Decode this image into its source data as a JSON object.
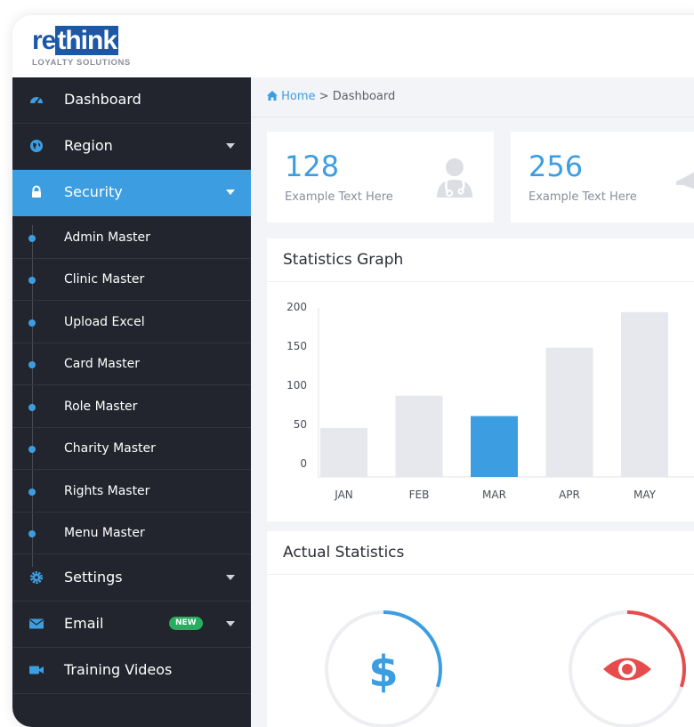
{
  "brand": {
    "logo_re": "re",
    "logo_think": "think",
    "tagline": "LOYALTY SOLUTIONS"
  },
  "sidebar": {
    "items": [
      {
        "label": "Dashboard",
        "icon": "dashboard-icon"
      },
      {
        "label": "Region",
        "icon": "globe-icon"
      },
      {
        "label": "Security",
        "icon": "lock-icon",
        "active": true
      },
      {
        "label": "Settings",
        "icon": "gear-icon"
      },
      {
        "label": "Email",
        "icon": "envelope-icon",
        "badge": "NEW"
      },
      {
        "label": "Training Videos",
        "icon": "video-camera-icon"
      }
    ],
    "security_sub": [
      "Admin Master",
      "Clinic Master",
      "Upload Excel",
      "Card Master",
      "Role Master",
      "Charity Master",
      "Rights Master",
      "Menu Master"
    ]
  },
  "breadcrumb": {
    "home": "Home",
    "separator": ">",
    "current": "Dashboard"
  },
  "stats": [
    {
      "value": "128",
      "text": "Example Text Here",
      "icon": "doctor-icon"
    },
    {
      "value": "256",
      "text": "Example Text Here",
      "icon": "megaphone-icon"
    }
  ],
  "panels": {
    "statistics_title": "Statistics Graph",
    "actual_title": "Actual Statistics"
  },
  "chart_data": {
    "type": "bar",
    "categories": [
      "JAN",
      "FEB",
      "MAR",
      "APR",
      "MAY"
    ],
    "values": [
      58,
      96,
      72,
      153,
      195
    ],
    "highlight_index": 2,
    "ylim": [
      0,
      200
    ],
    "yticks": [
      0,
      50,
      100,
      150,
      200
    ],
    "grid": false,
    "colors": {
      "bar": "#e6e8ee",
      "highlight": "#3c9ee0",
      "axis": "#e1e3e8"
    }
  },
  "gauges": [
    {
      "icon": "dollar-icon",
      "color": "#3c9ee0",
      "fraction": 0.3
    },
    {
      "icon": "eye-icon",
      "color": "#e74c4c",
      "fraction": 0.3
    }
  ],
  "colors": {
    "accent": "#3c9ee0",
    "sidebar_bg": "#22252e",
    "badge_new": "#27ae60"
  }
}
